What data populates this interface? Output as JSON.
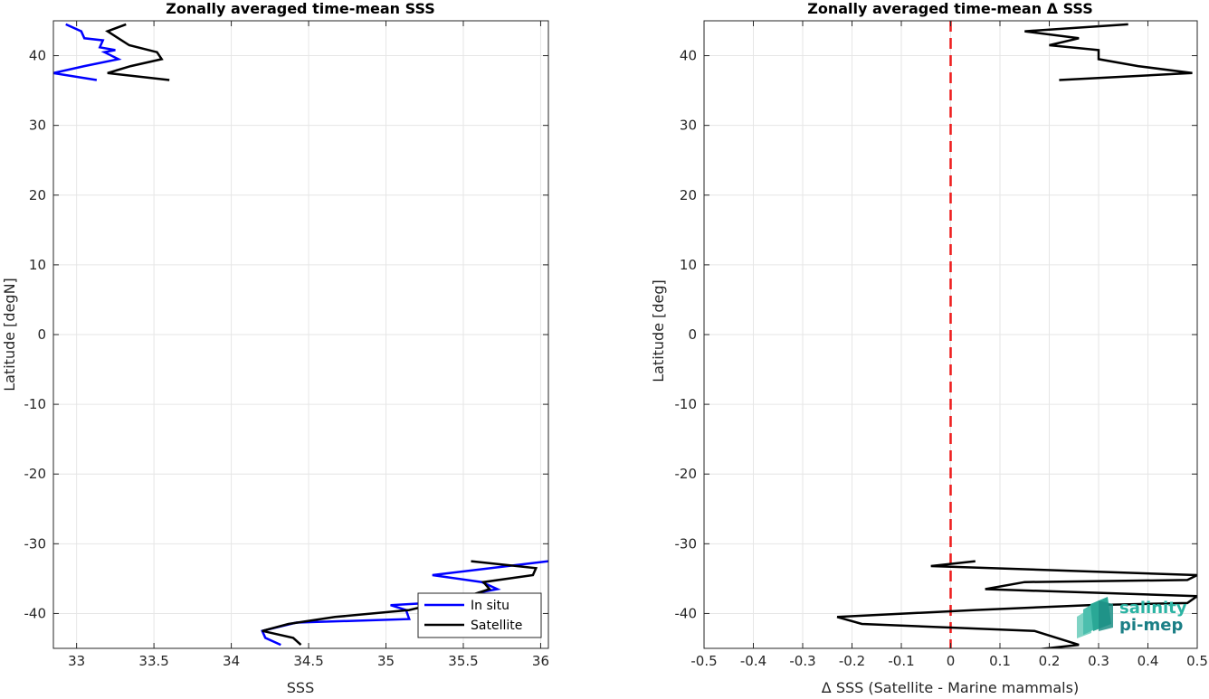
{
  "chart_data": [
    {
      "type": "line",
      "title": "Zonally averaged time-mean SSS",
      "xlabel": "SSS",
      "ylabel": "Latitude [degN]",
      "xlim": [
        32.85,
        36.05
      ],
      "ylim": [
        -45,
        45
      ],
      "xticks": [
        33,
        33.5,
        34,
        34.5,
        35,
        35.5,
        36
      ],
      "xtick_labels": [
        "33",
        "33.5",
        "34",
        "34.5",
        "35",
        "35.5",
        "36"
      ],
      "yticks": [
        -40,
        -30,
        -20,
        -10,
        0,
        10,
        20,
        30,
        40
      ],
      "ytick_labels": [
        "-40",
        "-30",
        "-20",
        "-10",
        "0",
        "10",
        "20",
        "30",
        "40"
      ],
      "grid": true,
      "legend": "bottom-right",
      "series": [
        {
          "name": "In situ",
          "color": "#0000ff",
          "segments": [
            [
              [
                32.93,
                44.5
              ],
              [
                33.03,
                43.5
              ],
              [
                33.05,
                42.5
              ],
              [
                33.17,
                42.2
              ],
              [
                33.15,
                41.2
              ],
              [
                33.25,
                40.8
              ],
              [
                33.18,
                40.5
              ],
              [
                33.27,
                39.5
              ],
              [
                33.05,
                38.5
              ],
              [
                32.85,
                37.5
              ],
              [
                33.13,
                36.5
              ]
            ],
            [
              [
                36.05,
                -32.5
              ],
              [
                35.3,
                -34.5
              ],
              [
                35.62,
                -35.5
              ],
              [
                35.72,
                -36.5
              ],
              [
                35.6,
                -37
              ],
              [
                35.5,
                -38.2
              ],
              [
                35.03,
                -38.8
              ],
              [
                35.13,
                -39.5
              ],
              [
                35.15,
                -40.8
              ],
              [
                34.42,
                -41.3
              ],
              [
                34.2,
                -42.5
              ],
              [
                34.22,
                -43.5
              ],
              [
                34.32,
                -44.5
              ]
            ]
          ]
        },
        {
          "name": "Satellite",
          "color": "#000000",
          "segments": [
            [
              [
                33.32,
                44.5
              ],
              [
                33.2,
                43.5
              ],
              [
                33.34,
                41.5
              ],
              [
                33.52,
                40.5
              ],
              [
                33.55,
                39.5
              ],
              [
                33.35,
                38.5
              ],
              [
                33.2,
                37.5
              ],
              [
                33.6,
                36.5
              ]
            ],
            [
              [
                35.55,
                -32.5
              ],
              [
                35.97,
                -33.5
              ],
              [
                35.95,
                -34.5
              ],
              [
                35.63,
                -35.5
              ],
              [
                35.67,
                -36.5
              ],
              [
                35.53,
                -37.5
              ],
              [
                35.15,
                -39.5
              ],
              [
                34.67,
                -40.5
              ],
              [
                34.37,
                -41.5
              ],
              [
                34.2,
                -42.5
              ],
              [
                34.4,
                -43.5
              ],
              [
                34.45,
                -44.5
              ]
            ]
          ]
        }
      ]
    },
    {
      "type": "line",
      "title": "Zonally averaged time-mean Δ SSS",
      "xlabel": "Δ SSS (Satellite - Marine mammals)",
      "ylabel": "Latitude [deg]",
      "xlim": [
        -0.5,
        0.5
      ],
      "ylim": [
        -45,
        45
      ],
      "xticks": [
        -0.5,
        -0.4,
        -0.3,
        -0.2,
        -0.1,
        0,
        0.1,
        0.2,
        0.3,
        0.4,
        0.5
      ],
      "xtick_labels": [
        "-0.5",
        "-0.4",
        "-0.3",
        "-0.2",
        "-0.1",
        "0",
        "0.1",
        "0.2",
        "0.3",
        "0.4",
        "0.5"
      ],
      "yticks": [
        -40,
        -30,
        -20,
        -10,
        0,
        10,
        20,
        30,
        40
      ],
      "ytick_labels": [
        "-40",
        "-30",
        "-20",
        "-10",
        "0",
        "10",
        "20",
        "30",
        "40"
      ],
      "grid": true,
      "reference_line": {
        "x": 0,
        "color": "#ee1c1c",
        "style": "dashed"
      },
      "series": [
        {
          "color": "#000000",
          "segments": [
            [
              [
                0.36,
                44.5
              ],
              [
                0.15,
                43.5
              ],
              [
                0.26,
                42.5
              ],
              [
                0.2,
                41.5
              ],
              [
                0.3,
                40.8
              ],
              [
                0.3,
                39.5
              ],
              [
                0.38,
                38.5
              ],
              [
                0.49,
                37.5
              ],
              [
                0.22,
                36.5
              ]
            ],
            [
              [
                0.05,
                -32.5
              ],
              [
                -0.04,
                -33.2
              ],
              [
                0.5,
                -34.5
              ],
              [
                0.48,
                -35.2
              ],
              [
                0.15,
                -35.5
              ],
              [
                0.07,
                -36.5
              ],
              [
                0.5,
                -37.5
              ],
              [
                0.48,
                -38.5
              ],
              [
                0.28,
                -38.8
              ],
              [
                0.05,
                -39.5
              ],
              [
                -0.23,
                -40.5
              ],
              [
                -0.18,
                -41.5
              ],
              [
                0.17,
                -42.5
              ],
              [
                0.26,
                -44.5
              ],
              [
                0.17,
                -45.2
              ]
            ]
          ]
        }
      ]
    }
  ],
  "logo": {
    "line1": "salinity",
    "line2": "pi-mep"
  }
}
